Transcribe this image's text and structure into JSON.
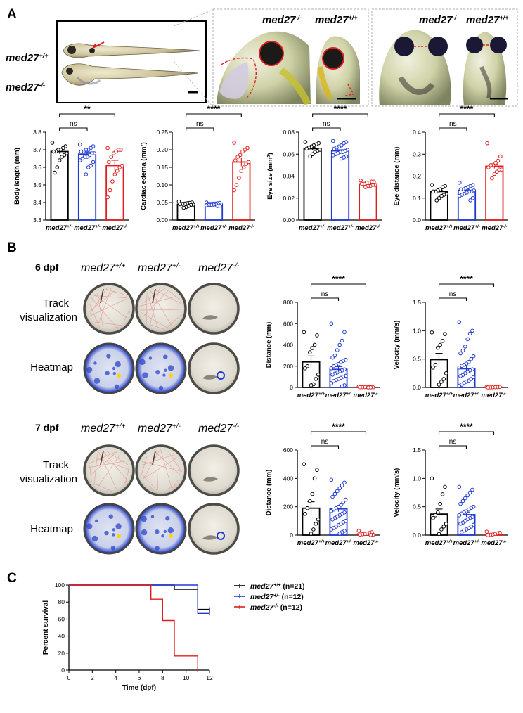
{
  "panels": {
    "a": "A",
    "b": "B",
    "c": "C"
  },
  "colors": {
    "wt": "#000000",
    "het": "#1f3ad0",
    "mut": "#e01e1e"
  },
  "genotypes": {
    "wt_base": "med27",
    "wt_sup": "+/+",
    "het_base": "med27",
    "het_sup": "+/-",
    "mut_base": "med27",
    "mut_sup": "-/-"
  },
  "sig": {
    "ns": "ns",
    "two": "**",
    "four": "****"
  },
  "panel_a": {
    "charts": [
      {
        "id": "body-length",
        "ylabel": "Body length (mm)",
        "ymin": 3.3,
        "ymax": 3.8,
        "ticks": [
          "3.3",
          "3.4",
          "3.5",
          "3.6",
          "3.7",
          "3.8"
        ],
        "means": [
          3.69,
          3.675,
          3.61
        ],
        "sems": [
          0.012,
          0.012,
          0.03
        ],
        "upper_sig": "**",
        "points": [
          [
            3.74,
            3.72,
            3.71,
            3.7,
            3.7,
            3.69,
            3.69,
            3.68,
            3.67,
            3.66,
            3.64,
            3.6,
            3.57
          ],
          [
            3.73,
            3.72,
            3.71,
            3.7,
            3.7,
            3.69,
            3.69,
            3.68,
            3.68,
            3.67,
            3.66,
            3.66,
            3.65,
            3.64,
            3.63,
            3.61,
            3.6,
            3.56
          ],
          [
            3.71,
            3.7,
            3.7,
            3.69,
            3.68,
            3.66,
            3.63,
            3.61,
            3.6,
            3.58,
            3.56,
            3.52,
            3.47,
            3.43
          ]
        ]
      },
      {
        "id": "cardiac-edema",
        "ylabel": "Cardiac edema (mm²)",
        "ymin": 0,
        "ymax": 0.25,
        "ticks": [
          "0.00",
          "0.05",
          "0.10",
          "0.15",
          "0.20",
          "0.25"
        ],
        "means": [
          0.045,
          0.045,
          0.165
        ],
        "sems": [
          0.002,
          0.001,
          0.012
        ],
        "upper_sig": "****",
        "points": [
          [
            0.053,
            0.05,
            0.049,
            0.048,
            0.047,
            0.046,
            0.045,
            0.044,
            0.043,
            0.04,
            0.037,
            0.035
          ],
          [
            0.05,
            0.049,
            0.048,
            0.047,
            0.047,
            0.046,
            0.046,
            0.045,
            0.045,
            0.044,
            0.044,
            0.043,
            0.043,
            0.042,
            0.041,
            0.04
          ],
          [
            0.22,
            0.205,
            0.2,
            0.195,
            0.185,
            0.18,
            0.17,
            0.165,
            0.16,
            0.15,
            0.14,
            0.12,
            0.1,
            0.085
          ]
        ]
      },
      {
        "id": "eye-size",
        "ylabel": "Eye size (mm²)",
        "ymin": 0,
        "ymax": 0.08,
        "ticks": [
          "0.00",
          "0.02",
          "0.04",
          "0.06",
          "0.08"
        ],
        "means": [
          0.065,
          0.063,
          0.033
        ],
        "sems": [
          0.001,
          0.001,
          0.0007
        ],
        "upper_sig": "****",
        "points": [
          [
            0.071,
            0.07,
            0.069,
            0.068,
            0.067,
            0.066,
            0.065,
            0.064,
            0.063,
            0.062,
            0.06,
            0.058
          ],
          [
            0.072,
            0.071,
            0.07,
            0.068,
            0.067,
            0.066,
            0.065,
            0.064,
            0.063,
            0.062,
            0.062,
            0.061,
            0.06,
            0.059,
            0.058,
            0.057,
            0.056
          ],
          [
            0.036,
            0.035,
            0.035,
            0.034,
            0.034,
            0.033,
            0.033,
            0.032,
            0.032,
            0.031,
            0.031,
            0.03
          ]
        ]
      },
      {
        "id": "eye-distance",
        "ylabel": "Eye distance (mm)",
        "ymin": 0,
        "ymax": 0.4,
        "ticks": [
          "0.0",
          "0.1",
          "0.2",
          "0.3",
          "0.4"
        ],
        "means": [
          0.13,
          0.135,
          0.245
        ],
        "sems": [
          0.006,
          0.005,
          0.01
        ],
        "upper_sig": "****",
        "points": [
          [
            0.16,
            0.155,
            0.15,
            0.14,
            0.135,
            0.13,
            0.13,
            0.12,
            0.115,
            0.11,
            0.1,
            0.09
          ],
          [
            0.17,
            0.16,
            0.155,
            0.15,
            0.145,
            0.14,
            0.14,
            0.135,
            0.13,
            0.13,
            0.125,
            0.12,
            0.115,
            0.11,
            0.1,
            0.09
          ],
          [
            0.35,
            0.29,
            0.27,
            0.26,
            0.25,
            0.25,
            0.24,
            0.23,
            0.23,
            0.22,
            0.21,
            0.19
          ]
        ]
      }
    ]
  },
  "panel_b": {
    "day6": "6 dpf",
    "day7": "7 dpf",
    "row_track": [
      "Track",
      "visualization"
    ],
    "row_heatmap": "Heatmap",
    "charts": [
      {
        "id": "distance-6dpf",
        "ylabel": "Distance (mm)",
        "ymin": 0,
        "ymax": 800,
        "ticks": [
          "0",
          "200",
          "400",
          "600",
          "800"
        ],
        "means": [
          240,
          170,
          5
        ],
        "sems": [
          55,
          25,
          2
        ],
        "upper_sig": "****",
        "points": [
          [
            520,
            490,
            400,
            370,
            330,
            200,
            180,
            120,
            80,
            30,
            20
          ],
          [
            600,
            520,
            440,
            400,
            350,
            300,
            280,
            260,
            250,
            240,
            220,
            210,
            200,
            180,
            170,
            160,
            150,
            140,
            130,
            120,
            110,
            100,
            90,
            80,
            70,
            60,
            40,
            20,
            10
          ],
          [
            8,
            6,
            5,
            4,
            3,
            2,
            2,
            1,
            1,
            0
          ]
        ]
      },
      {
        "id": "velocity-6dpf",
        "ylabel": "Velocity (mm/s)",
        "ymin": 0,
        "ymax": 1.5,
        "ticks": [
          "0.0",
          "0.5",
          "1.0",
          "1.5"
        ],
        "means": [
          0.49,
          0.33,
          0.005
        ],
        "sems": [
          0.11,
          0.05,
          0.002
        ],
        "upper_sig": "****",
        "points": [
          [
            0.97,
            0.94,
            0.82,
            0.75,
            0.7,
            0.4,
            0.35,
            0.25,
            0.15,
            0.1,
            0.05
          ],
          [
            1.15,
            1.0,
            0.95,
            0.85,
            0.72,
            0.65,
            0.6,
            0.55,
            0.5,
            0.45,
            0.42,
            0.4,
            0.38,
            0.35,
            0.32,
            0.3,
            0.28,
            0.25,
            0.22,
            0.2,
            0.18,
            0.15,
            0.12,
            0.1,
            0.08,
            0.05,
            0.03
          ],
          [
            0.01,
            0.008,
            0.006,
            0.004,
            0.002,
            0.001,
            0
          ]
        ]
      },
      {
        "id": "distance-7dpf",
        "ylabel": "Distance (mm)",
        "ymin": 0,
        "ymax": 600,
        "ticks": [
          "0",
          "200",
          "400",
          "600"
        ],
        "means": [
          190,
          185,
          8
        ],
        "sems": [
          45,
          20,
          3
        ],
        "upper_sig": "****",
        "points": [
          [
            500,
            460,
            400,
            290,
            240,
            190,
            150,
            110,
            80,
            40,
            10
          ],
          [
            390,
            370,
            350,
            330,
            310,
            290,
            270,
            250,
            230,
            210,
            200,
            190,
            180,
            170,
            160,
            150,
            140,
            130,
            120,
            110,
            100,
            90,
            80,
            70,
            60,
            50,
            40,
            30,
            20,
            10
          ],
          [
            30,
            20,
            15,
            10,
            8,
            6,
            4,
            2,
            1
          ]
        ]
      },
      {
        "id": "velocity-7dpf",
        "ylabel": "Velocity (mm/s)",
        "ymin": 0,
        "ymax": 1.5,
        "ticks": [
          "0.0",
          "0.5",
          "1.0",
          "1.5"
        ],
        "means": [
          0.37,
          0.36,
          0.01
        ],
        "sems": [
          0.09,
          0.04,
          0.004
        ],
        "upper_sig": "****",
        "points": [
          [
            1.0,
            0.85,
            0.72,
            0.55,
            0.4,
            0.35,
            0.3,
            0.2,
            0.15,
            0.1,
            0.02
          ],
          [
            0.85,
            0.8,
            0.75,
            0.7,
            0.65,
            0.6,
            0.55,
            0.5,
            0.48,
            0.45,
            0.42,
            0.4,
            0.38,
            0.35,
            0.32,
            0.3,
            0.28,
            0.25,
            0.22,
            0.2,
            0.18,
            0.15,
            0.12,
            0.1,
            0.08,
            0.05
          ],
          [
            0.06,
            0.04,
            0.03,
            0.02,
            0.01,
            0.005,
            0
          ]
        ]
      }
    ]
  },
  "panel_c": {
    "chart_data": {
      "type": "line",
      "title": "",
      "xlabel": "Time (dpf)",
      "ylabel": "Percent survival",
      "xlim": [
        0,
        12
      ],
      "ylim": [
        0,
        100
      ],
      "xticks": [
        "0",
        "2",
        "4",
        "6",
        "8",
        "10",
        "12"
      ],
      "yticks": [
        "0",
        "20",
        "40",
        "60",
        "80",
        "100"
      ],
      "series": [
        {
          "name": "wt",
          "legend_base": "med27",
          "legend_sup": "+/+",
          "legend_n": " (n=21)",
          "color": "#000000",
          "steps": [
            [
              0,
              100
            ],
            [
              9,
              100
            ],
            [
              9,
              95
            ],
            [
              11,
              95
            ],
            [
              11,
              71.4
            ],
            [
              12,
              71.4
            ]
          ]
        },
        {
          "name": "het",
          "legend_base": "med27",
          "legend_sup": "+/-",
          "legend_n": " (n=12)",
          "color": "#1f3ad0",
          "steps": [
            [
              0,
              100
            ],
            [
              11,
              100
            ],
            [
              11,
              66.7
            ],
            [
              12,
              66.7
            ]
          ]
        },
        {
          "name": "mut",
          "legend_base": "med27",
          "legend_sup": "-/-",
          "legend_n": " (n=12)",
          "color": "#e01e1e",
          "steps": [
            [
              0,
              100
            ],
            [
              7,
              100
            ],
            [
              7,
              83.3
            ],
            [
              8,
              83.3
            ],
            [
              8,
              58.3
            ],
            [
              9,
              58.3
            ],
            [
              9,
              16.7
            ],
            [
              11,
              16.7
            ],
            [
              11,
              0
            ]
          ]
        }
      ]
    }
  }
}
